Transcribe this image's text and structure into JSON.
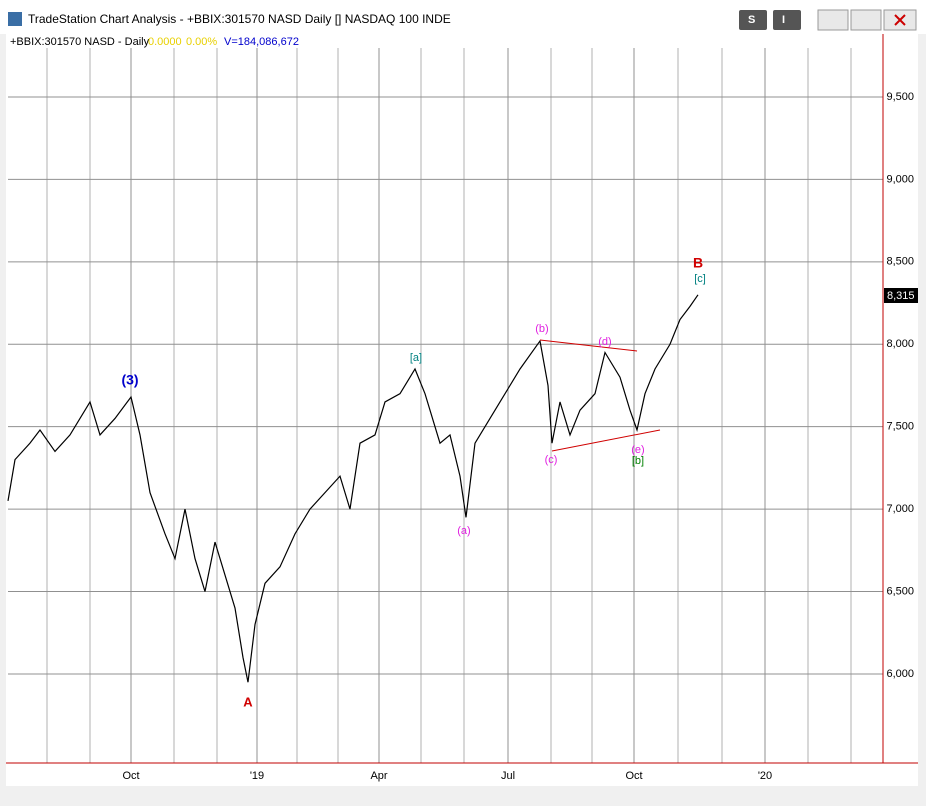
{
  "window": {
    "title": "TradeStation Chart Analysis - +BBIX:301570 NASD Daily [] NASDAQ 100 INDE",
    "buttons": [
      "S",
      "I"
    ]
  },
  "chart_data": {
    "type": "line",
    "header": {
      "symbol": "+BBIX:301570 NASD - Daily",
      "change": "0.0000",
      "change_pct": "0.00%",
      "volume": "V=184,086,672"
    },
    "x": [
      0,
      3.5,
      11,
      16,
      23.5,
      31,
      41,
      46,
      53.5,
      61.5,
      66,
      71,
      78.5,
      83.5,
      88.5,
      93.5,
      98.5,
      103.5,
      108.5,
      113.5,
      117.5,
      120,
      123.5,
      128.5,
      136,
      143.5,
      151,
      158.5,
      166,
      171,
      176,
      183.5,
      188.5,
      196,
      203.5,
      208.5,
      216,
      221,
      226,
      229,
      233.5,
      241,
      246,
      256,
      266,
      270,
      272,
      276,
      281,
      286,
      293.5,
      298.5,
      306,
      311,
      314.5,
      318.5,
      323.5,
      331,
      336,
      341,
      345
    ],
    "values": [
      7050,
      7300,
      7400,
      7480,
      7350,
      7450,
      7650,
      7450,
      7550,
      7680,
      7450,
      7100,
      6850,
      6700,
      7000,
      6700,
      6500,
      6800,
      6600,
      6400,
      6100,
      5950,
      6300,
      6550,
      6650,
      6850,
      7000,
      7100,
      7200,
      7000,
      7400,
      7450,
      7650,
      7700,
      7850,
      7700,
      7400,
      7450,
      7200,
      6950,
      7400,
      7550,
      7650,
      7850,
      8020,
      7750,
      7400,
      7650,
      7450,
      7600,
      7700,
      7950,
      7800,
      7600,
      7480,
      7700,
      7850,
      8000,
      8150,
      8230,
      8300
    ],
    "color": "#000000",
    "xlim": [
      0,
      437.5
    ],
    "xticks": [
      {
        "value": 61.5,
        "label": "Oct"
      },
      {
        "value": 124.5,
        "label": "'19"
      },
      {
        "value": 185.5,
        "label": "Apr"
      },
      {
        "value": 250,
        "label": "Jul"
      },
      {
        "value": 313,
        "label": "Oct"
      },
      {
        "value": 378.5,
        "label": "'20"
      }
    ],
    "ylim": [
      5460,
      9797
    ],
    "yticks": [
      {
        "value": 6000,
        "label": "6,000"
      },
      {
        "value": 6500,
        "label": "6,500"
      },
      {
        "value": 7000,
        "label": "7,000"
      },
      {
        "value": 7500,
        "label": "7,500"
      },
      {
        "value": 8000,
        "label": "8,000"
      },
      {
        "value": 8500,
        "label": "8,500"
      },
      {
        "value": 9000,
        "label": "9,000"
      },
      {
        "value": 9500,
        "label": "9,500"
      }
    ],
    "grid": true,
    "last_price_label": "8,315",
    "annotations": [
      "(3)",
      "A",
      "[a]",
      "(a)",
      "(b)",
      "(c)",
      "(d)",
      "(e)",
      "[b]",
      "B",
      "[c]"
    ]
  }
}
